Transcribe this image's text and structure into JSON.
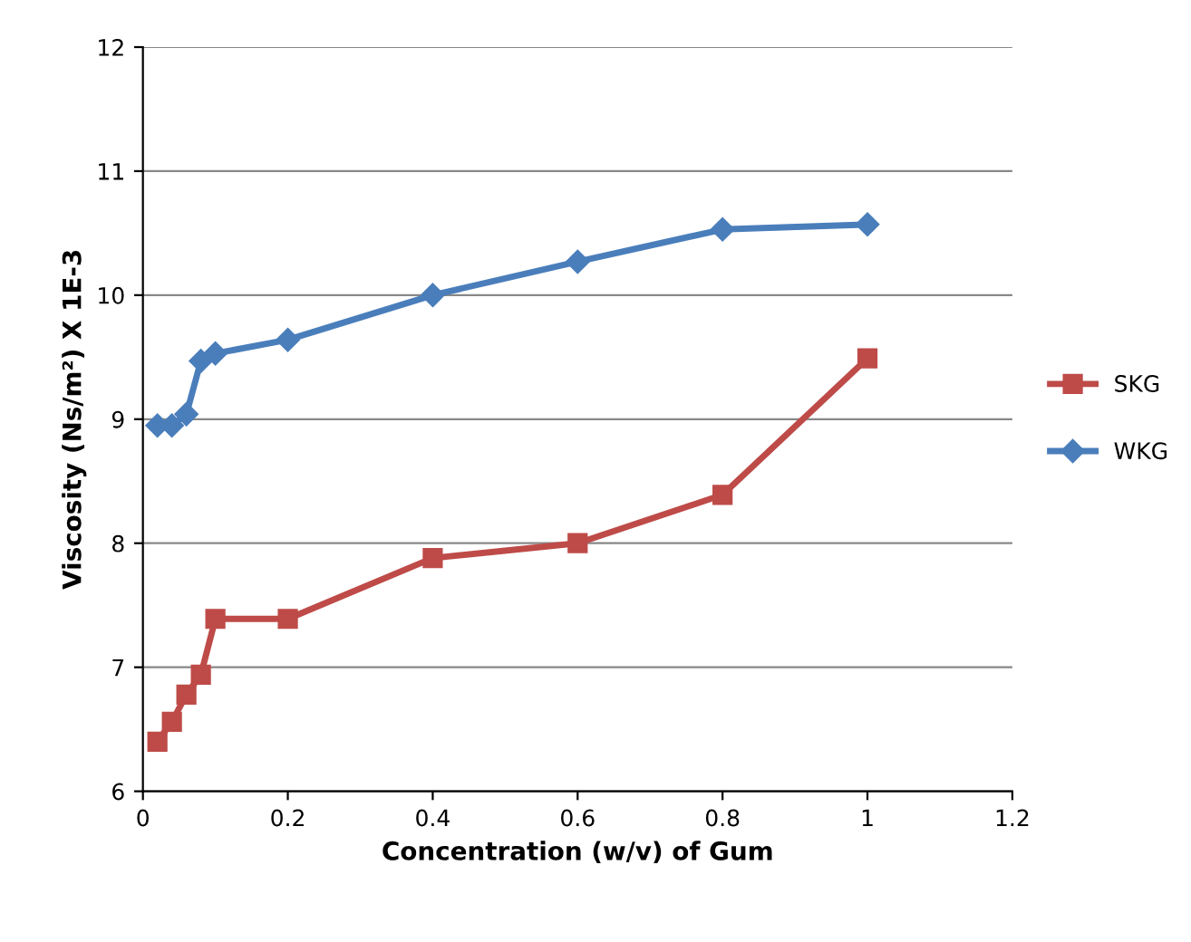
{
  "chart_data": {
    "type": "line",
    "xlabel": "Concentration (w/v) of Gum",
    "ylabel": "Viscosity (Ns/m²) X 1E-3",
    "x": [
      0.02,
      0.04,
      0.06,
      0.08,
      0.1,
      0.2,
      0.4,
      0.6,
      0.8,
      1.0
    ],
    "series": [
      {
        "name": "SKG",
        "color": "#be4b48",
        "marker": "square",
        "values": [
          6.4,
          6.56,
          6.78,
          6.94,
          7.39,
          7.39,
          7.88,
          8.0,
          8.39,
          9.49
        ]
      },
      {
        "name": "WKG",
        "color": "#4a7ebb",
        "marker": "diamond",
        "values": [
          8.95,
          8.95,
          9.04,
          9.47,
          9.53,
          9.64,
          10.0,
          10.27,
          10.53,
          10.57
        ]
      }
    ],
    "xlim": [
      0,
      1.2
    ],
    "xticks": [
      0,
      0.2,
      0.4,
      0.6,
      0.8,
      1,
      1.2
    ],
    "ylim": [
      6,
      12
    ],
    "yticks": [
      6,
      7,
      8,
      9,
      10,
      11,
      12
    ],
    "grid": "y",
    "legend": "right",
    "line_style": "solid"
  }
}
